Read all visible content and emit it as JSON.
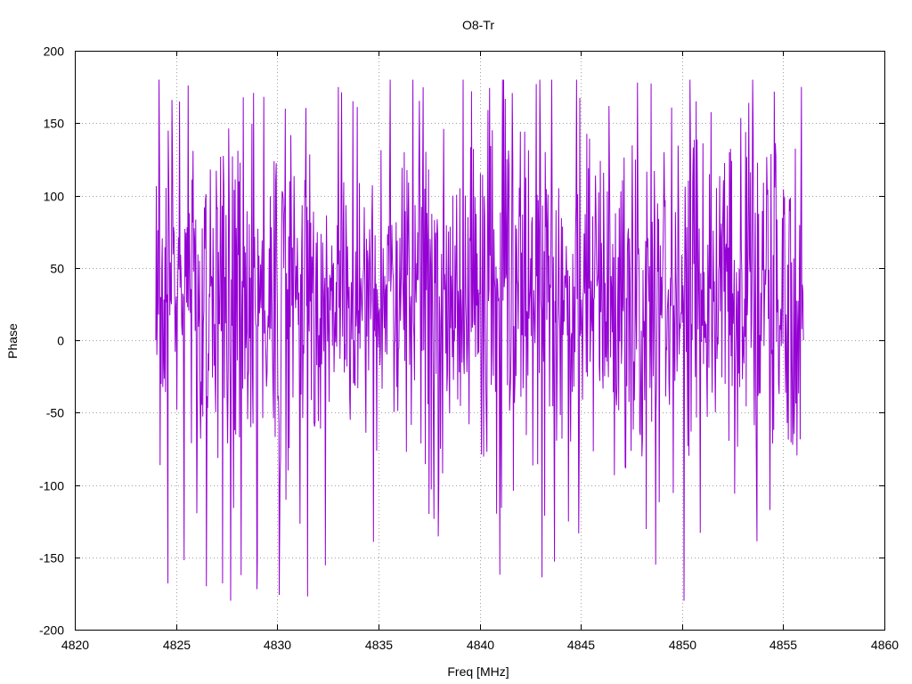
{
  "chart_data": {
    "type": "line",
    "title": "O8-Tr",
    "xlabel": "Freq [MHz]",
    "ylabel": "Phase",
    "xlim": [
      4820,
      4860
    ],
    "ylim": [
      -200,
      200
    ],
    "xticks": [
      "4820",
      "4825",
      "4830",
      "4835",
      "4840",
      "4845",
      "4850",
      "4855",
      "4860"
    ],
    "yticks": [
      "200",
      "150",
      "100",
      "50",
      "0",
      "-50",
      "-100",
      "-150",
      "-200"
    ],
    "grid": true,
    "legend": "none",
    "series": [
      {
        "color": "#9400d3",
        "x_start": 4824.0,
        "x_end": 4856.0,
        "n_points": 1200,
        "sampling_seed": 8,
        "mean": 30,
        "spread": 55,
        "clip": [
          -180,
          180
        ],
        "spikes": [
          {
            "x": 4824.0,
            "y": 0
          },
          {
            "x": 4824.1,
            "y": 76
          },
          {
            "x": 4824.6,
            "y": -168
          },
          {
            "x": 4824.8,
            "y": 166
          },
          {
            "x": 4825.4,
            "y": -152
          },
          {
            "x": 4825.6,
            "y": 176
          },
          {
            "x": 4826.5,
            "y": -170
          },
          {
            "x": 4827.3,
            "y": -168
          },
          {
            "x": 4827.7,
            "y": -180
          },
          {
            "x": 4829.0,
            "y": -172
          },
          {
            "x": 4830.1,
            "y": -176
          },
          {
            "x": 4830.4,
            "y": 160
          },
          {
            "x": 4831.5,
            "y": -177
          },
          {
            "x": 4835.0,
            "y": -5
          },
          {
            "x": 4837.5,
            "y": -120
          },
          {
            "x": 4839.6,
            "y": 172
          },
          {
            "x": 4841.0,
            "y": -162
          },
          {
            "x": 4842.8,
            "y": 177
          },
          {
            "x": 4843.7,
            "y": -153
          },
          {
            "x": 4847.1,
            "y": 20
          },
          {
            "x": 4847.8,
            "y": 178
          },
          {
            "x": 4848.7,
            "y": -155
          },
          {
            "x": 4850.1,
            "y": -180
          },
          {
            "x": 4850.7,
            "y": 165
          },
          {
            "x": 4852.6,
            "y": -106
          },
          {
            "x": 4853.3,
            "y": 164
          },
          {
            "x": 4855.9,
            "y": 175
          },
          {
            "x": 4856.0,
            "y": 0
          }
        ]
      }
    ]
  }
}
